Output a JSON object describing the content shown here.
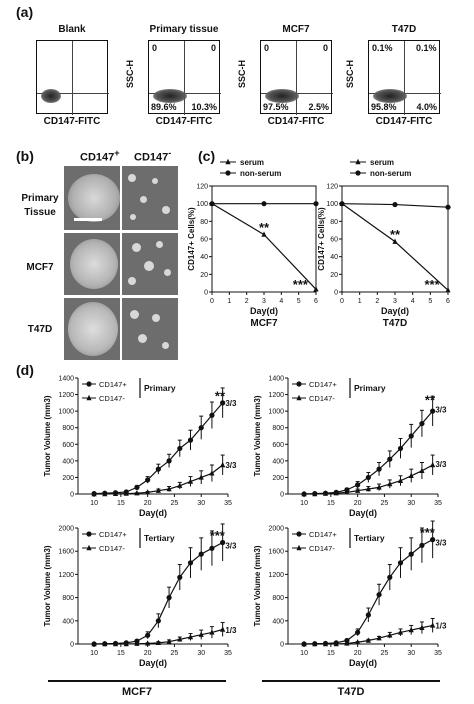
{
  "panels": {
    "a": "(a)",
    "b": "(b)",
    "c": "(c)",
    "d": "(d)"
  },
  "flow": {
    "ylabel": "SSC-H",
    "xlabel": "CD147-FITC",
    "plots": [
      {
        "title": "Blank",
        "ul": "",
        "ur": "",
        "ll": "",
        "lr": "",
        "show_y": false
      },
      {
        "title": "Primary tissue",
        "ul": "0",
        "ur": "0",
        "ll": "89.6%",
        "lr": "10.3%",
        "show_y": true
      },
      {
        "title": "MCF7",
        "ul": "0",
        "ur": "0",
        "ll": "97.5%",
        "lr": "2.5%",
        "show_y": true
      },
      {
        "title": "T47D",
        "ul": "0.1%",
        "ur": "0.1%",
        "ll": "95.8%",
        "lr": "4.0%",
        "show_y": true
      }
    ]
  },
  "sphere": {
    "col_pos": "CD147",
    "col_pos_sup": "+",
    "col_neg": "CD147",
    "col_neg_sup": "-",
    "rows": [
      "Primary\nTissue",
      "MCF7",
      "T47D"
    ]
  },
  "chart_data": [
    {
      "id": "c-mcf7",
      "type": "line",
      "title": "MCF7",
      "xlabel": "Day(d)",
      "ylabel": "CD147+ Cells(%)",
      "x": [
        0,
        3,
        6
      ],
      "xlim": [
        0,
        6
      ],
      "ylim": [
        0,
        120
      ],
      "xticks": [
        0,
        1,
        2,
        3,
        4,
        5,
        6
      ],
      "yticks": [
        0,
        20,
        40,
        60,
        80,
        100,
        120
      ],
      "series": [
        {
          "name": "serum",
          "marker": "triangle",
          "values": [
            100,
            65,
            3
          ]
        },
        {
          "name": "non-serum",
          "marker": "circle",
          "values": [
            100,
            100,
            100
          ]
        }
      ],
      "annotations": [
        {
          "text": "**",
          "x": 3,
          "y": 75
        },
        {
          "text": "***",
          "x": 5.1,
          "y": 10
        }
      ]
    },
    {
      "id": "c-t47d",
      "type": "line",
      "title": "T47D",
      "xlabel": "Day(d)",
      "ylabel": "CD147+ Cells(%)",
      "x": [
        0,
        3,
        6
      ],
      "xlim": [
        0,
        6
      ],
      "ylim": [
        0,
        120
      ],
      "xticks": [
        0,
        1,
        2,
        3,
        4,
        5,
        6
      ],
      "yticks": [
        0,
        20,
        40,
        60,
        80,
        100,
        120
      ],
      "series": [
        {
          "name": "serum",
          "marker": "triangle",
          "values": [
            100,
            57,
            2
          ]
        },
        {
          "name": "non-serum",
          "marker": "circle",
          "values": [
            100,
            99,
            96
          ]
        }
      ],
      "annotations": [
        {
          "text": "**",
          "x": 3,
          "y": 67
        },
        {
          "text": "***",
          "x": 5.1,
          "y": 10
        }
      ]
    },
    {
      "id": "d-mcf7-primary",
      "type": "line",
      "xlabel": "Day(d)",
      "ylabel": "Tumor Volume (mm3)",
      "legend_title": "Primary",
      "xlim": [
        7,
        35
      ],
      "ylim": [
        0,
        1400
      ],
      "xticks": [
        10,
        15,
        20,
        25,
        30,
        35
      ],
      "yticks": [
        0,
        200,
        400,
        600,
        800,
        1000,
        1200,
        1400
      ],
      "x": [
        10,
        12,
        14,
        16,
        18,
        20,
        22,
        24,
        26,
        28,
        30,
        32,
        34
      ],
      "series": [
        {
          "name": "CD147+",
          "marker": "circle",
          "values": [
            5,
            10,
            15,
            25,
            80,
            170,
            300,
            400,
            550,
            650,
            800,
            950,
            1100
          ],
          "err": [
            5,
            5,
            5,
            10,
            20,
            40,
            60,
            80,
            100,
            120,
            140,
            160,
            180
          ]
        },
        {
          "name": "CD147-",
          "marker": "triangle",
          "values": [
            0,
            0,
            2,
            5,
            10,
            20,
            40,
            60,
            100,
            150,
            200,
            250,
            350
          ],
          "err": [
            0,
            0,
            2,
            5,
            5,
            10,
            20,
            30,
            40,
            60,
            80,
            100,
            120
          ]
        }
      ],
      "annotations": [
        {
          "text": "**",
          "x": 33.5,
          "y": 1200
        },
        {
          "text": "3/3",
          "x": 34.5,
          "y": 1100
        },
        {
          "text": "3/3",
          "x": 34.5,
          "y": 350
        }
      ]
    },
    {
      "id": "d-t47d-primary",
      "type": "line",
      "xlabel": "Day(d)",
      "ylabel": "Tumor Volume (mm3)",
      "legend_title": "Primary",
      "xlim": [
        7,
        35
      ],
      "ylim": [
        0,
        1400
      ],
      "xticks": [
        10,
        15,
        20,
        25,
        30,
        35
      ],
      "yticks": [
        0,
        200,
        400,
        600,
        800,
        1000,
        1200,
        1400
      ],
      "x": [
        10,
        12,
        14,
        16,
        18,
        20,
        22,
        24,
        26,
        28,
        30,
        32,
        34
      ],
      "series": [
        {
          "name": "CD147+",
          "marker": "circle",
          "values": [
            0,
            5,
            10,
            20,
            50,
            110,
            200,
            300,
            420,
            550,
            700,
            850,
            1000
          ],
          "err": [
            0,
            5,
            5,
            10,
            20,
            40,
            60,
            80,
            100,
            120,
            140,
            160,
            180
          ]
        },
        {
          "name": "CD147-",
          "marker": "triangle",
          "values": [
            0,
            0,
            5,
            10,
            20,
            40,
            60,
            80,
            120,
            160,
            220,
            280,
            350
          ],
          "err": [
            0,
            0,
            2,
            5,
            10,
            20,
            30,
            40,
            50,
            60,
            80,
            100,
            120
          ]
        }
      ],
      "annotations": [
        {
          "text": "**",
          "x": 33.5,
          "y": 1150
        },
        {
          "text": "3/3",
          "x": 34.5,
          "y": 1020
        },
        {
          "text": "3/3",
          "x": 34.5,
          "y": 360
        }
      ]
    },
    {
      "id": "d-mcf7-tertiary",
      "type": "line",
      "xlabel": "Day(d)",
      "ylabel": "Tumor Volume (mm3)",
      "legend_title": "Tertiary",
      "xlim": [
        7,
        35
      ],
      "ylim": [
        0,
        2000
      ],
      "xticks": [
        10,
        15,
        20,
        25,
        30,
        35
      ],
      "yticks": [
        0,
        400,
        800,
        1200,
        1600,
        2000
      ],
      "x": [
        10,
        12,
        14,
        16,
        18,
        20,
        22,
        24,
        26,
        28,
        30,
        32,
        34
      ],
      "series": [
        {
          "name": "CD147+",
          "marker": "circle",
          "values": [
            0,
            5,
            10,
            20,
            50,
            150,
            400,
            800,
            1150,
            1400,
            1550,
            1650,
            1750
          ],
          "err": [
            0,
            5,
            5,
            10,
            20,
            60,
            120,
            180,
            220,
            260,
            280,
            300,
            320
          ]
        },
        {
          "name": "CD147-",
          "marker": "triangle",
          "values": [
            0,
            0,
            0,
            0,
            5,
            10,
            20,
            40,
            80,
            120,
            160,
            200,
            250
          ],
          "err": [
            0,
            0,
            0,
            0,
            5,
            10,
            20,
            30,
            40,
            60,
            80,
            100,
            120
          ]
        }
      ],
      "annotations": [
        {
          "text": "***",
          "x": 33,
          "y": 1900
        },
        {
          "text": "3/3",
          "x": 34.5,
          "y": 1700
        },
        {
          "text": "1/3",
          "x": 34.5,
          "y": 240
        }
      ]
    },
    {
      "id": "d-t47d-tertiary",
      "type": "line",
      "xlabel": "Day(d)",
      "ylabel": "Tumor Volume (mm3)",
      "legend_title": "Tertiary",
      "xlim": [
        7,
        35
      ],
      "ylim": [
        0,
        2000
      ],
      "xticks": [
        10,
        15,
        20,
        25,
        30,
        35
      ],
      "yticks": [
        0,
        400,
        800,
        1200,
        1600,
        2000
      ],
      "x": [
        10,
        12,
        14,
        16,
        18,
        20,
        22,
        24,
        26,
        28,
        30,
        32,
        34
      ],
      "series": [
        {
          "name": "CD147+",
          "marker": "circle",
          "values": [
            0,
            5,
            10,
            20,
            60,
            200,
            500,
            850,
            1150,
            1400,
            1550,
            1700,
            1800
          ],
          "err": [
            0,
            5,
            5,
            10,
            20,
            60,
            120,
            180,
            220,
            260,
            280,
            300,
            320
          ]
        },
        {
          "name": "CD147-",
          "marker": "triangle",
          "values": [
            0,
            0,
            0,
            0,
            10,
            30,
            60,
            100,
            150,
            200,
            240,
            280,
            320
          ],
          "err": [
            0,
            0,
            0,
            0,
            5,
            10,
            20,
            30,
            50,
            60,
            80,
            100,
            120
          ]
        }
      ],
      "annotations": [
        {
          "text": "***",
          "x": 33,
          "y": 1950
        },
        {
          "text": "3/3",
          "x": 34.5,
          "y": 1750
        },
        {
          "text": "1/3",
          "x": 34.5,
          "y": 320
        }
      ]
    }
  ],
  "bottom_labels": {
    "left": "MCF7",
    "right": "T47D"
  }
}
